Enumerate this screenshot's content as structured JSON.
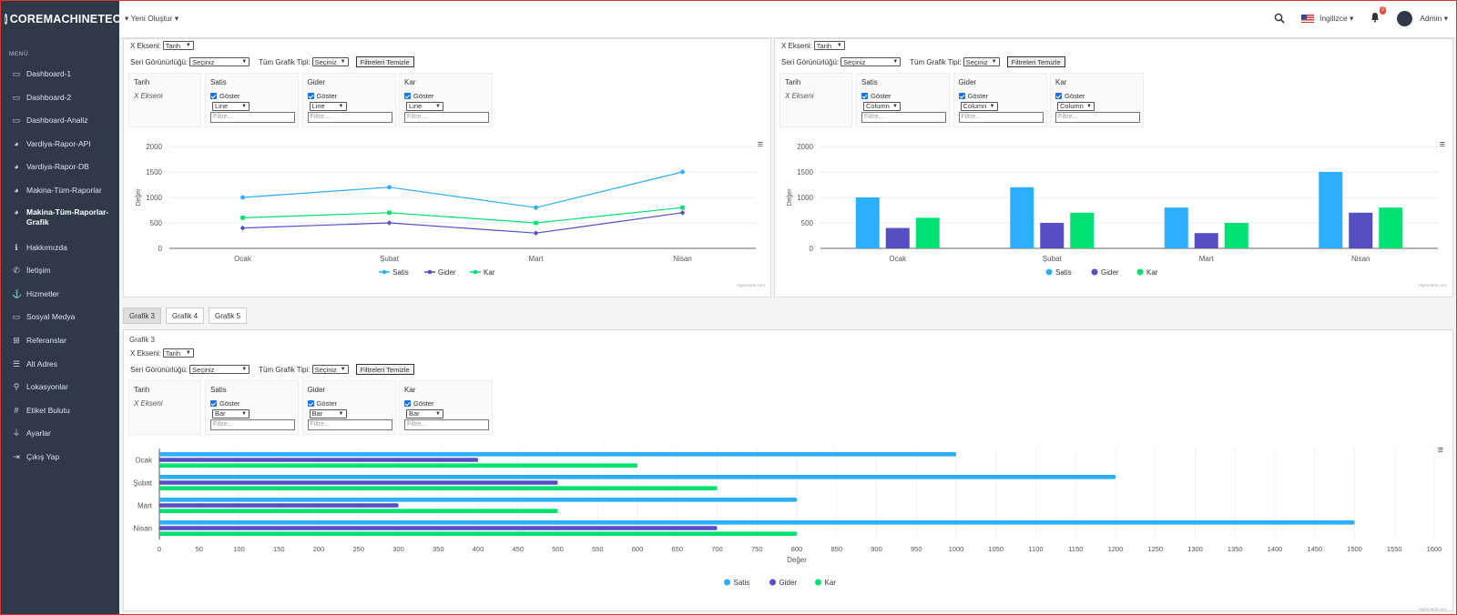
{
  "brand": "COREMACHINETEC",
  "menu_title": "MENÜ",
  "sidebar": {
    "items": [
      {
        "label": "Dashboard-1",
        "icon": "monitor-icon"
      },
      {
        "label": "Dashboard-2",
        "icon": "monitor-icon"
      },
      {
        "label": "Dashboard-Analiz",
        "icon": "monitor-icon"
      },
      {
        "label": "Vardiya-Rapor-API",
        "icon": "pie-chart-icon"
      },
      {
        "label": "Vardiya-Rapor-DB",
        "icon": "pie-chart-icon"
      },
      {
        "label": "Makina-Tüm-Raporlar",
        "icon": "pie-chart-icon"
      },
      {
        "label": "Makina-Tüm-Raporlar-Grafik",
        "icon": "pie-chart-icon",
        "active": true
      },
      {
        "label": "Hakkımızda",
        "icon": "info-icon"
      },
      {
        "label": "İletişim",
        "icon": "phone-icon"
      },
      {
        "label": "Hizmetler",
        "icon": "anchor-icon"
      },
      {
        "label": "Sosyal Medya",
        "icon": "monitor-icon"
      },
      {
        "label": "Referanslar",
        "icon": "gamepad-icon"
      },
      {
        "label": "Alt Adres",
        "icon": "list-icon"
      },
      {
        "label": "Lokasyonlar",
        "icon": "map-pin-icon"
      },
      {
        "label": "Etiket Bulutu",
        "icon": "hash-icon"
      },
      {
        "label": "Ayarlar",
        "icon": "plug-icon"
      },
      {
        "label": "Çıkış Yap",
        "icon": "logout-icon"
      }
    ]
  },
  "topbar": {
    "new_label": "Yeni Oluştur",
    "language": "İngilizce",
    "notif_count": "0",
    "user": "Admin"
  },
  "controls": {
    "x_axis_label": "X Ekseni:",
    "x_axis_value": "Tarih",
    "visibility_label": "Seri Görünürlüğü:",
    "visibility_value": "Seçiniz",
    "chart_type_label": "Tüm Grafik Tipi:",
    "chart_type_value": "Seçiniz",
    "clear_button": "Filtreleri Temizle",
    "col_tarih": "Tarih",
    "x_ekseni": "X Ekseni",
    "show_label": "Göster",
    "filter_placeholder": "Filtre...",
    "series": [
      "Satis",
      "Gider",
      "Kar"
    ]
  },
  "panels": {
    "p1_type": "Line",
    "p2_type": "Column",
    "p3_type": "Bar"
  },
  "tabs": [
    "Grafik 3",
    "Grafik 4",
    "Grafik 5"
  ],
  "grafik3_title": "Grafik 3",
  "credit": "Highcharts.com",
  "colors": {
    "satis": "#2caffe",
    "gider": "#544fc5",
    "kar": "#00e272",
    "sidebar": "#2e3a48"
  },
  "chart_data": [
    {
      "type": "line",
      "categories": [
        "Ocak",
        "Şubat",
        "Mart",
        "Nisan"
      ],
      "series": [
        {
          "name": "Satis",
          "values": [
            1000,
            1200,
            800,
            1500
          ]
        },
        {
          "name": "Gider",
          "values": [
            400,
            500,
            300,
            700
          ]
        },
        {
          "name": "Kar",
          "values": [
            600,
            700,
            500,
            800
          ]
        }
      ],
      "ylabel": "Değer",
      "ylim": [
        0,
        2000
      ],
      "yticks": [
        0,
        500,
        1000,
        1500,
        2000
      ],
      "legend": "bottom-center"
    },
    {
      "type": "bar",
      "categories": [
        "Ocak",
        "Şubat",
        "Mart",
        "Nisan"
      ],
      "series": [
        {
          "name": "Satis",
          "values": [
            1000,
            1200,
            800,
            1500
          ]
        },
        {
          "name": "Gider",
          "values": [
            400,
            500,
            300,
            700
          ]
        },
        {
          "name": "Kar",
          "values": [
            600,
            700,
            500,
            800
          ]
        }
      ],
      "ylabel": "Değer",
      "ylim": [
        0,
        2000
      ],
      "yticks": [
        0,
        500,
        1000,
        1500,
        2000
      ],
      "legend": "bottom-center"
    },
    {
      "type": "bar",
      "orientation": "horizontal",
      "categories": [
        "Ocak",
        "Şubat",
        "Mart",
        "Nisan"
      ],
      "series": [
        {
          "name": "Satis",
          "values": [
            1000,
            1200,
            800,
            1500
          ]
        },
        {
          "name": "Gider",
          "values": [
            400,
            500,
            300,
            700
          ]
        },
        {
          "name": "Kar",
          "values": [
            600,
            700,
            500,
            800
          ]
        }
      ],
      "xlabel": "Değer",
      "xlim": [
        0,
        1600
      ],
      "xticks": [
        0,
        50,
        100,
        150,
        200,
        250,
        300,
        350,
        400,
        450,
        500,
        550,
        600,
        650,
        700,
        750,
        800,
        850,
        900,
        950,
        1000,
        1050,
        1100,
        1150,
        1200,
        1250,
        1300,
        1350,
        1400,
        1450,
        1500,
        1550,
        1600
      ],
      "legend": "bottom-center"
    }
  ]
}
